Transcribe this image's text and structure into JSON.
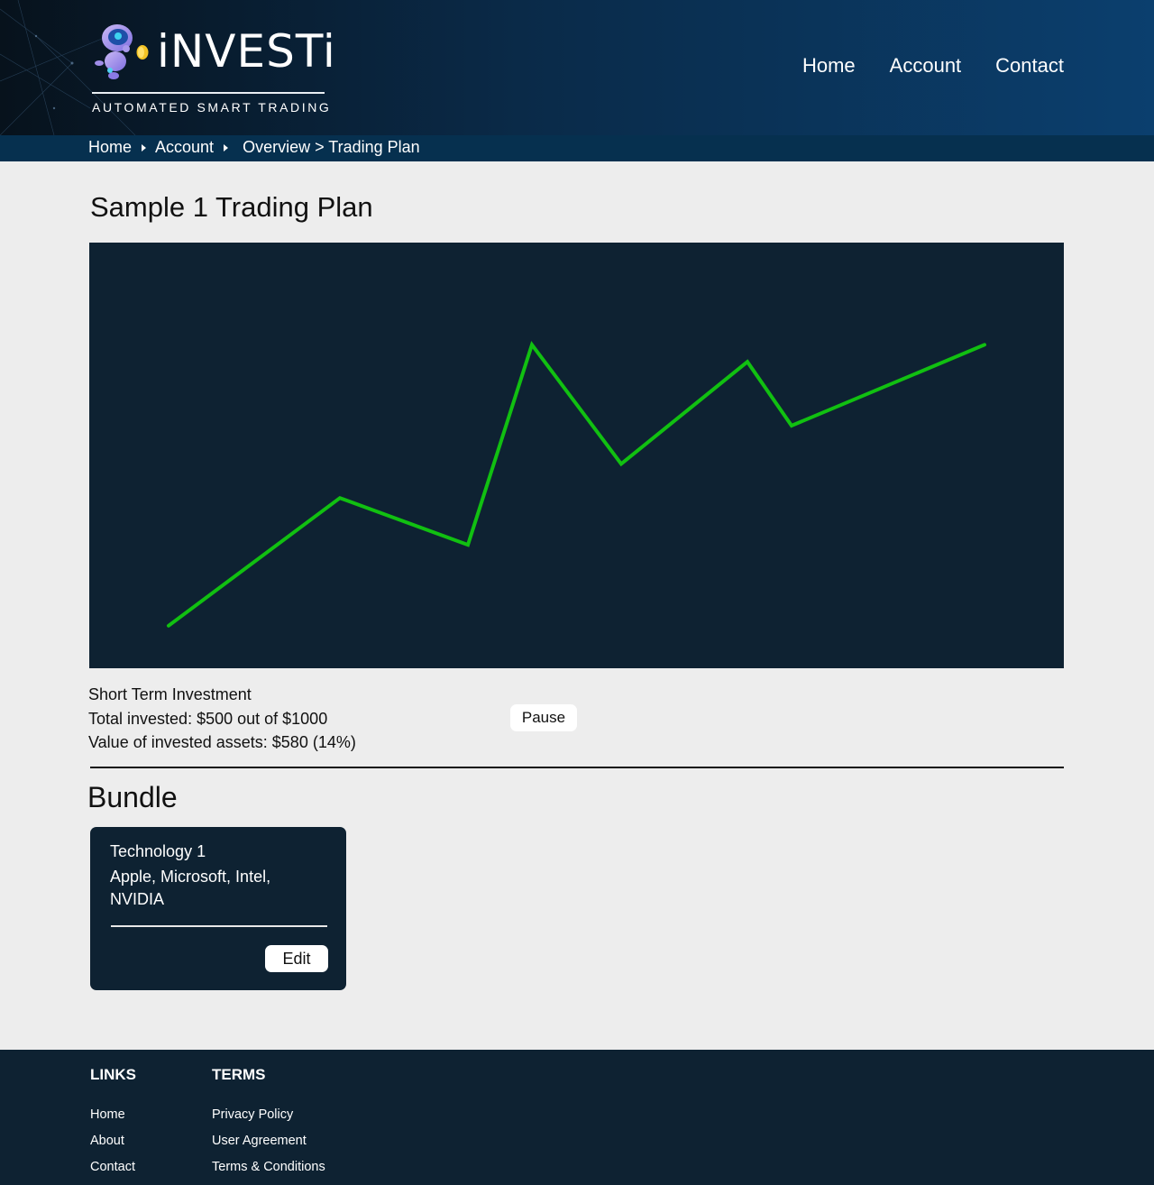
{
  "brand": {
    "name": "iNVESTi",
    "tagline": "AUTOMATED SMART TRADING"
  },
  "nav": {
    "home": "Home",
    "account": "Account",
    "contact": "Contact"
  },
  "breadcrumb": {
    "home": "Home",
    "account": "Account",
    "rest": "Overview > Trading Plan"
  },
  "page": {
    "title": "Sample 1 Trading Plan"
  },
  "chart_data": {
    "type": "line",
    "title": "",
    "xlabel": "",
    "ylabel": "",
    "grid": false,
    "color": "#11c011",
    "x": [
      1,
      2,
      3,
      4,
      5,
      6,
      7,
      8
    ],
    "values": [
      10,
      40,
      29,
      76,
      48,
      72,
      57,
      76
    ],
    "ylim": [
      0,
      100
    ]
  },
  "plan": {
    "type_label": "Short Term Investment",
    "total_invested": "Total invested: $500 out of $1000",
    "asset_value": "Value of invested assets: $580 (14%)",
    "pause_label": "Pause"
  },
  "bundle": {
    "section_title": "Bundle",
    "card_title": "Technology 1",
    "card_desc": "Apple, Microsoft, Intel, NVIDIA",
    "edit_label": "Edit"
  },
  "footer": {
    "links_heading": "LINKS",
    "links": [
      "Home",
      "About",
      "Contact"
    ],
    "terms_heading": "TERMS",
    "terms": [
      "Privacy Policy",
      "User Agreement",
      "Terms & Conditions"
    ]
  },
  "colors": {
    "header_dark": "#07121c",
    "header_blue": "#0b3f6e",
    "breadcrumb_bg": "#06304f",
    "panel_bg": "#0e2232",
    "line": "#11c011",
    "page_bg": "#ededed"
  }
}
